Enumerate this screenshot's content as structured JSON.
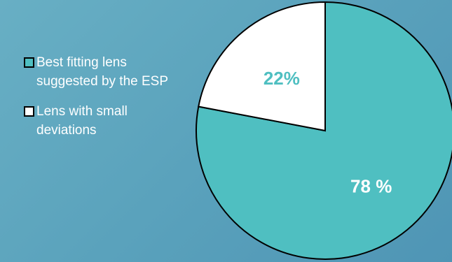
{
  "chart_data": {
    "type": "pie",
    "title": "",
    "series": [
      {
        "name": "Best fitting lens suggested by the ESP",
        "value": 78,
        "label": "78 %",
        "color": "#4fbfc1",
        "label_color": "#ffffff"
      },
      {
        "name": "Lens with small deviations",
        "value": 22,
        "label": "22%",
        "color": "#ffffff",
        "label_color": "#4fbfc1"
      }
    ],
    "legend_position": "left",
    "start_angle_deg": 0,
    "direction": "clockwise"
  },
  "colors": {
    "background_start": "#68afc4",
    "background_end": "#4f95b5",
    "outline": "#000000"
  }
}
